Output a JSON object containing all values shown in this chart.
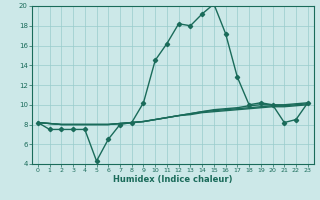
{
  "xlabel": "Humidex (Indice chaleur)",
  "x": [
    0,
    1,
    2,
    3,
    4,
    5,
    6,
    7,
    8,
    9,
    10,
    11,
    12,
    13,
    14,
    15,
    16,
    17,
    18,
    19,
    20,
    21,
    22,
    23
  ],
  "line1": [
    8.2,
    7.5,
    7.5,
    7.5,
    7.5,
    4.3,
    6.5,
    8.0,
    8.2,
    10.2,
    14.5,
    16.2,
    18.2,
    18.0,
    19.2,
    20.2,
    17.2,
    12.8,
    10.0,
    10.2,
    10.0,
    8.2,
    8.5,
    10.2
  ],
  "line2": [
    8.2,
    8.1,
    8.0,
    8.0,
    8.0,
    8.0,
    8.0,
    8.1,
    8.2,
    8.3,
    8.5,
    8.7,
    8.9,
    9.1,
    9.3,
    9.5,
    9.6,
    9.7,
    9.9,
    10.0,
    10.0,
    10.0,
    10.1,
    10.2
  ],
  "line3": [
    8.2,
    8.1,
    8.0,
    8.0,
    8.0,
    8.0,
    8.0,
    8.1,
    8.2,
    8.3,
    8.5,
    8.7,
    8.9,
    9.1,
    9.3,
    9.4,
    9.5,
    9.6,
    9.7,
    9.8,
    9.9,
    9.9,
    10.0,
    10.1
  ],
  "line4": [
    8.2,
    8.1,
    8.0,
    8.0,
    8.0,
    8.0,
    8.0,
    8.1,
    8.2,
    8.3,
    8.5,
    8.7,
    8.9,
    9.0,
    9.2,
    9.3,
    9.4,
    9.5,
    9.6,
    9.7,
    9.8,
    9.8,
    9.9,
    10.0
  ],
  "ylim": [
    4,
    20
  ],
  "yticks": [
    4,
    6,
    8,
    10,
    12,
    14,
    16,
    18,
    20
  ],
  "xticks": [
    0,
    1,
    2,
    3,
    4,
    5,
    6,
    7,
    8,
    9,
    10,
    11,
    12,
    13,
    14,
    15,
    16,
    17,
    18,
    19,
    20,
    21,
    22,
    23
  ],
  "line_color": "#1a6b5a",
  "bg_color": "#cce8e8",
  "grid_color": "#99cccc",
  "marker": "D",
  "marker_size": 2.2,
  "linewidth": 1.0
}
